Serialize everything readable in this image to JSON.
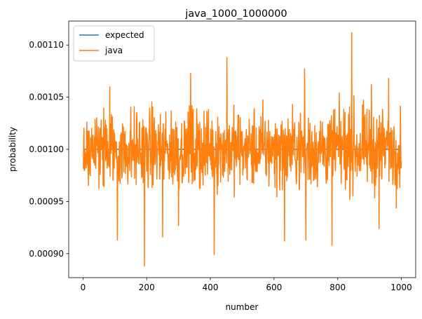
{
  "chart_data": {
    "type": "line",
    "title": "java_1000_1000000",
    "xlabel": "number",
    "ylabel": "probability",
    "xlim": [
      -45,
      1045
    ],
    "ylim": [
      0.000877,
      0.001123
    ],
    "xticks": [
      0,
      200,
      400,
      600,
      800,
      1000
    ],
    "xtick_labels": [
      "0",
      "200",
      "400",
      "600",
      "800",
      "1000"
    ],
    "yticks": [
      0.0009,
      0.00095,
      0.001,
      0.00105,
      0.0011
    ],
    "ytick_labels": [
      "0.00090",
      "0.00095",
      "0.00100",
      "0.00105",
      "0.00110"
    ],
    "grid": false,
    "legend_position": "top-left",
    "series": [
      {
        "name": "expected",
        "color": "#1f77b4",
        "x": [
          1,
          1000
        ],
        "values": [
          0.001,
          0.001
        ]
      },
      {
        "name": "java",
        "color": "#ff7f0e",
        "x_start": 1,
        "x_step": 1,
        "count": 1000,
        "noise_amplitude": 3.2e-05,
        "mean": 0.001,
        "extremes": [
          {
            "x": 844,
            "y": 0.001112
          },
          {
            "x": 193,
            "y": 0.000888
          },
          {
            "x": 412,
            "y": 0.000899
          },
          {
            "x": 452,
            "y": 0.001088
          },
          {
            "x": 782,
            "y": 0.000908
          },
          {
            "x": 696,
            "y": 0.001077
          },
          {
            "x": 108,
            "y": 0.000913
          },
          {
            "x": 633,
            "y": 0.000912
          },
          {
            "x": 700,
            "y": 0.000913
          },
          {
            "x": 250,
            "y": 0.000916
          },
          {
            "x": 84,
            "y": 0.00106
          },
          {
            "x": 338,
            "y": 0.001073
          },
          {
            "x": 960,
            "y": 0.001068
          },
          {
            "x": 906,
            "y": 0.001062
          },
          {
            "x": 300,
            "y": 0.000927
          },
          {
            "x": 930,
            "y": 0.000924
          }
        ]
      }
    ]
  }
}
